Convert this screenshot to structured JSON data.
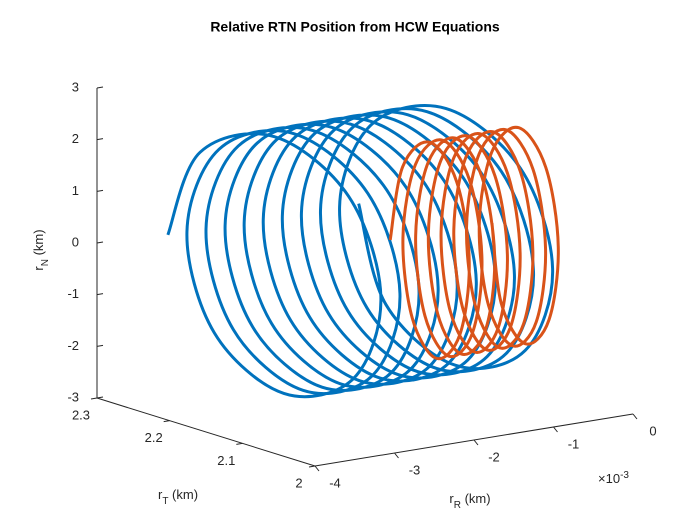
{
  "chart_data": {
    "type": "line3d",
    "title": "Relative RTN Position from HCW Equations",
    "xlabel": [
      "r",
      "R",
      " (km)"
    ],
    "ylabel": [
      "r",
      "T",
      " (km)"
    ],
    "zlabel": [
      "r",
      "N",
      " (km)"
    ],
    "xexponent": [
      "×10",
      "-3"
    ],
    "xlim": [
      -4,
      0
    ],
    "xticks": [
      -4,
      -3,
      -2,
      -1,
      0
    ],
    "ylim": [
      2,
      2.3
    ],
    "yticks": [
      2,
      2.1,
      2.2,
      2.3
    ],
    "zlim": [
      -3,
      3
    ],
    "zticks": [
      -3,
      -2,
      -1,
      0,
      1,
      2,
      3
    ],
    "series": [
      {
        "color": "#0072BD",
        "x": [
          -3.2,
          -3.17,
          -3.14,
          -3.11,
          -3.08,
          -3.05,
          -3.02,
          -2.99,
          -2.96,
          -2.93,
          -2.9,
          -2.87,
          -2.84,
          -2.81,
          -2.78,
          -2.75,
          -2.72,
          -2.69,
          -2.66,
          -2.63,
          -2.6,
          -2.57,
          -2.54,
          -2.51,
          -2.48,
          -2.45,
          -2.42,
          -2.39,
          -2.36,
          -2.33,
          -2.3,
          -2.27,
          -2.24,
          -2.21,
          -2.18,
          -2.15,
          -2.12,
          -2.09,
          -2.06,
          -2.03,
          -2,
          -1.97,
          -1.94,
          -1.91,
          -1.88,
          -1.85,
          -1.82,
          -1.79,
          -1.76,
          -1.73,
          -1.7,
          -1.67,
          -1.64,
          -1.61,
          -1.58,
          -1.55,
          -1.52,
          -1.49,
          -1.46,
          -1.43,
          -1.4,
          -1.37,
          -1.34,
          -1.31,
          -1.28,
          -1.25,
          -1.22,
          -1.19,
          -1.16,
          -1.13,
          -1.1,
          -1.07,
          -1.04,
          -1.01,
          -0.98,
          -0.95,
          -0.92,
          -0.89,
          -0.86,
          -0.83,
          -0.8
        ],
        "y": [
          2.29,
          2.249,
          2.15,
          2.051,
          2.01,
          2.051,
          2.15,
          2.249,
          2.29,
          2.249,
          2.15,
          2.051,
          2.01,
          2.051,
          2.15,
          2.249,
          2.29,
          2.249,
          2.15,
          2.051,
          2.01,
          2.051,
          2.15,
          2.249,
          2.29,
          2.249,
          2.15,
          2.051,
          2.01,
          2.051,
          2.15,
          2.249,
          2.29,
          2.249,
          2.15,
          2.051,
          2.01,
          2.051,
          2.15,
          2.249,
          2.29,
          2.249,
          2.15,
          2.051,
          2.01,
          2.051,
          2.15,
          2.249,
          2.29,
          2.249,
          2.15,
          2.051,
          2.01,
          2.051,
          2.15,
          2.249,
          2.29,
          2.249,
          2.15,
          2.051,
          2.01,
          2.051,
          2.15,
          2.249,
          2.29,
          2.249,
          2.15,
          2.051,
          2.01,
          2.051,
          2.15,
          2.249,
          2.29,
          2.249,
          2.15,
          2.051,
          2.01,
          2.051,
          2.15,
          2.249,
          2.29
        ],
        "z": [
          0,
          1.77,
          2.5,
          1.77,
          0,
          -1.77,
          -2.5,
          -1.77,
          0,
          1.77,
          2.5,
          1.77,
          0,
          -1.77,
          -2.5,
          -1.77,
          0,
          1.77,
          2.5,
          1.77,
          0,
          -1.77,
          -2.5,
          -1.77,
          0,
          1.77,
          2.5,
          1.77,
          0,
          -1.77,
          -2.5,
          -1.77,
          0,
          1.77,
          2.5,
          1.77,
          0,
          -1.77,
          -2.5,
          -1.77,
          0,
          1.77,
          2.5,
          1.77,
          0,
          -1.77,
          -2.5,
          -1.77,
          0,
          1.77,
          2.5,
          1.77,
          0,
          -1.77,
          -2.5,
          -1.77,
          0,
          1.77,
          2.5,
          1.77,
          0,
          -1.77,
          -2.5,
          -1.77,
          0,
          1.77,
          2.5,
          1.77,
          0,
          -1.77,
          -2.5,
          -1.77,
          0,
          1.77,
          2.5,
          1.77,
          0,
          -1.77,
          -2.5,
          -1.77,
          0
        ]
      },
      {
        "color": "#D95319",
        "x": [
          -1.5,
          -1.48,
          -1.46,
          -1.44,
          -1.42,
          -1.4,
          -1.38,
          -1.36,
          -1.34,
          -1.32,
          -1.3,
          -1.28,
          -1.26,
          -1.24,
          -1.22,
          -1.2,
          -1.18,
          -1.16,
          -1.14,
          -1.12,
          -1.1,
          -1.08,
          -1.06,
          -1.04,
          -1.02,
          -1,
          -0.98,
          -0.96,
          -0.94,
          -0.92,
          -0.9,
          -0.88,
          -0.86,
          -0.84,
          -0.82,
          -0.8,
          -0.78,
          -0.76,
          -0.74,
          -0.72,
          -0.7,
          -0.68,
          -0.66,
          -0.64,
          -0.62,
          -0.6,
          -0.58,
          -0.56,
          -0.54,
          -0.52,
          -0.5,
          -0.48,
          -0.46,
          -0.44,
          -0.42,
          -0.4,
          -0.38,
          -0.36,
          -0.34,
          -0.32,
          -0.3,
          -0.28,
          -0.26,
          -0.24,
          -0.22
        ],
        "y": [
          2.17,
          2.155,
          2.12,
          2.085,
          2.07,
          2.085,
          2.12,
          2.155,
          2.17,
          2.155,
          2.12,
          2.085,
          2.07,
          2.085,
          2.12,
          2.155,
          2.17,
          2.155,
          2.12,
          2.085,
          2.07,
          2.085,
          2.12,
          2.155,
          2.17,
          2.155,
          2.12,
          2.085,
          2.07,
          2.085,
          2.12,
          2.155,
          2.17,
          2.155,
          2.12,
          2.085,
          2.07,
          2.085,
          2.12,
          2.155,
          2.17,
          2.155,
          2.12,
          2.085,
          2.07,
          2.085,
          2.12,
          2.155,
          2.17,
          2.155,
          2.12,
          2.085,
          2.07,
          2.085,
          2.12,
          2.155,
          2.17,
          2.155,
          2.12,
          2.085,
          2.07,
          2.085,
          2.12,
          2.155,
          2.17
        ],
        "z": [
          0,
          1.48,
          2.1,
          1.48,
          0,
          -1.48,
          -2.1,
          -1.48,
          0,
          1.48,
          2.1,
          1.48,
          0,
          -1.48,
          -2.1,
          -1.48,
          0,
          1.48,
          2.1,
          1.48,
          0,
          -1.48,
          -2.1,
          -1.48,
          0,
          1.48,
          2.1,
          1.48,
          0,
          -1.48,
          -2.1,
          -1.48,
          0,
          1.48,
          2.1,
          1.48,
          0,
          -1.48,
          -2.1,
          -1.48,
          0,
          1.48,
          2.1,
          1.48,
          0,
          -1.48,
          -2.1,
          -1.48,
          0,
          1.48,
          2.1,
          1.48,
          0,
          -1.48,
          -2.1,
          -1.48,
          0,
          1.48,
          2.1,
          1.48,
          0,
          -1.48,
          -2.1,
          -1.48,
          0
        ]
      }
    ]
  }
}
